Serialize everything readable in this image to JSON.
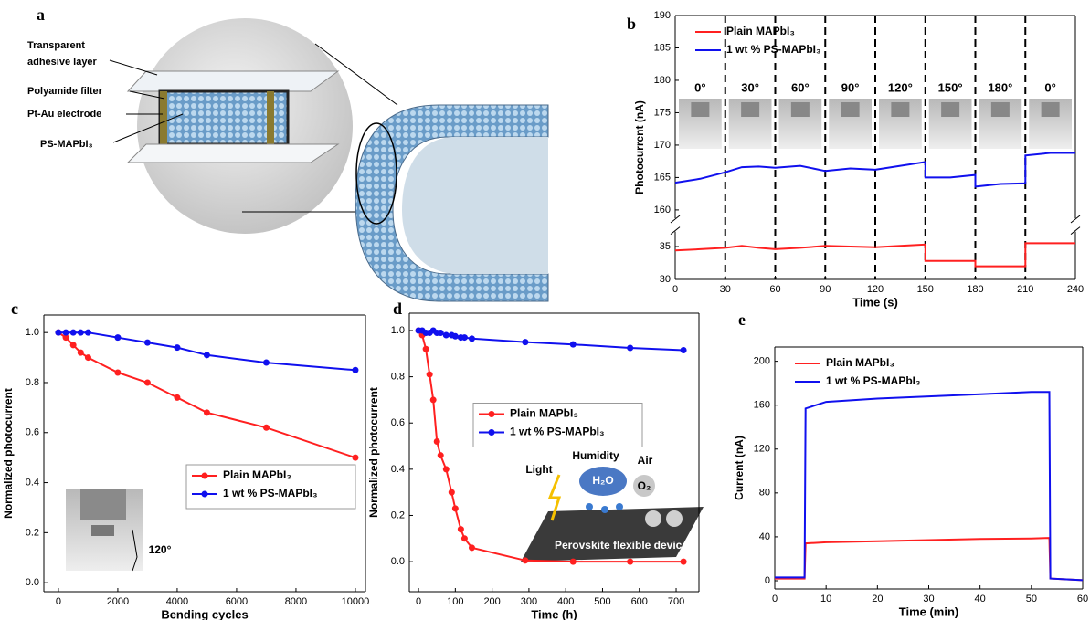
{
  "diagram": {
    "panel": "a",
    "label_lines": [
      "Transparent",
      "adhesive layer",
      "Polyamide filter",
      "Pt-Au electrode",
      "PS-MAPbI₃"
    ]
  },
  "chart_data": [
    {
      "type": "line",
      "panel": "b",
      "xlabel": "Time (s)",
      "ylabel": "Photocurrent (nA)",
      "x": [
        0,
        15,
        30,
        40,
        50,
        60,
        75,
        90,
        105,
        120,
        135,
        150,
        150,
        165,
        180,
        180,
        195,
        210,
        210,
        225,
        240
      ],
      "series": [
        {
          "name": "Plain MAPbI₃",
          "color": "#ff2020",
          "values": [
            34.4,
            34.6,
            34.8,
            35.1,
            34.8,
            34.6,
            34.8,
            35.1,
            35,
            34.9,
            35.1,
            35.3,
            32.8,
            32.8,
            32.8,
            32,
            32,
            32,
            35.5,
            35.5,
            35.5
          ]
        },
        {
          "name": "1 wt % PS-MAPbI₃",
          "color": "#1010ee",
          "values": [
            164.2,
            164.8,
            165.8,
            166.6,
            166.7,
            166.5,
            166.8,
            166,
            166.4,
            166.2,
            166.8,
            167.4,
            165,
            165,
            165.4,
            163.6,
            164,
            164.1,
            168.4,
            168.8,
            168.8
          ]
        }
      ],
      "xlim": [
        0,
        240
      ],
      "xticks": [
        0,
        30,
        60,
        90,
        120,
        150,
        180,
        210,
        240
      ],
      "ylim": [
        30,
        190
      ],
      "ybreak": [
        37,
        159
      ],
      "yticks": [
        30,
        35,
        160,
        165,
        170,
        175,
        180,
        185,
        190
      ],
      "markers": false,
      "dashed_dividers": true,
      "legend": "upper left",
      "annotations": [
        "0°",
        "30°",
        "60°",
        "90°",
        "120°",
        "150°",
        "180°",
        "0°"
      ]
    },
    {
      "type": "line",
      "panel": "c",
      "xlabel": "Bending cycles",
      "ylabel": "Normalized photocurrent",
      "x": [
        0,
        250,
        500,
        750,
        1000,
        2000,
        3000,
        4000,
        5000,
        7000,
        10000
      ],
      "series": [
        {
          "name": "Plain MAPbI₃",
          "color": "#ff2020",
          "values": [
            1.0,
            0.98,
            0.95,
            0.92,
            0.9,
            0.84,
            0.8,
            0.74,
            0.68,
            0.62,
            0.5
          ]
        },
        {
          "name": "1 wt % PS-MAPbI₃",
          "color": "#1010ee",
          "values": [
            1.0,
            1.0,
            1.0,
            1.0,
            1.0,
            0.98,
            0.96,
            0.94,
            0.91,
            0.88,
            0.85
          ]
        }
      ],
      "xlim": [
        -490,
        10340
      ],
      "xticks": [
        0,
        2000,
        4000,
        6000,
        8000,
        10000
      ],
      "ylim": [
        -0.036,
        1.07
      ],
      "yticks": [
        {
          "value": 0,
          "label": "0.0"
        },
        0.2,
        0.4,
        0.6,
        0.8,
        {
          "value": 1,
          "label": "1.0"
        }
      ],
      "markers": true,
      "legend": "lower right",
      "inset_labels": [
        "120°"
      ]
    },
    {
      "type": "line",
      "panel": "d",
      "xlabel": "Time (h)",
      "ylabel": "Normalized photocurrent",
      "x": [
        0,
        10,
        20,
        30,
        40,
        50,
        60,
        75,
        90,
        100,
        115,
        125,
        145,
        290,
        420,
        575,
        720
      ],
      "series": [
        {
          "name": "Plain MAPbI₃",
          "color": "#ff2020",
          "values": [
            1.0,
            0.98,
            0.92,
            0.81,
            0.7,
            0.52,
            0.46,
            0.4,
            0.3,
            0.23,
            0.14,
            0.1,
            0.06,
            0.005,
            0,
            0,
            0
          ]
        },
        {
          "name": "1 wt % PS-MAPbI₃",
          "color": "#1010ee",
          "values": [
            1.0,
            1.0,
            0.99,
            0.99,
            1.0,
            0.99,
            0.99,
            0.98,
            0.98,
            0.975,
            0.97,
            0.97,
            0.965,
            0.95,
            0.94,
            0.925,
            0.915
          ]
        }
      ],
      "xlim": [
        -25,
        762
      ],
      "xticks": [
        0,
        100,
        200,
        300,
        400,
        500,
        600,
        700
      ],
      "ylim": [
        -0.13,
        1.075
      ],
      "yticks": [
        {
          "value": 0,
          "label": "0.0"
        },
        0.2,
        0.4,
        0.6,
        0.8,
        {
          "value": 1,
          "label": "1.0"
        }
      ],
      "markers": true,
      "legend": "center",
      "inset_labels": [
        "Light",
        "Humidity",
        "H₂O",
        "Air",
        "O₂",
        "Perovskite flexible device"
      ]
    },
    {
      "type": "line",
      "panel": "e",
      "xlabel": "Time (min)",
      "ylabel": "Current (nA)",
      "x": [
        0,
        5.8,
        6,
        10,
        20,
        30,
        40,
        50,
        53.5,
        53.7,
        60
      ],
      "series": [
        {
          "name": "Plain MAPbI₃",
          "color": "#ff2020",
          "values": [
            2,
            2,
            34,
            35,
            36,
            37,
            38,
            38.5,
            39,
            2,
            0.5
          ]
        },
        {
          "name": "1 wt % PS-MAPbI₃",
          "color": "#1010ee",
          "values": [
            3,
            3,
            157,
            163,
            166,
            168,
            170,
            172,
            172,
            2,
            0.5
          ]
        }
      ],
      "xlim": [
        0,
        60
      ],
      "xticks": [
        0,
        10,
        20,
        30,
        40,
        50,
        60
      ],
      "ylim": [
        -7.5,
        213
      ],
      "yticks": [
        0,
        40,
        80,
        120,
        160,
        200
      ],
      "markers": false,
      "legend": "upper left"
    }
  ]
}
